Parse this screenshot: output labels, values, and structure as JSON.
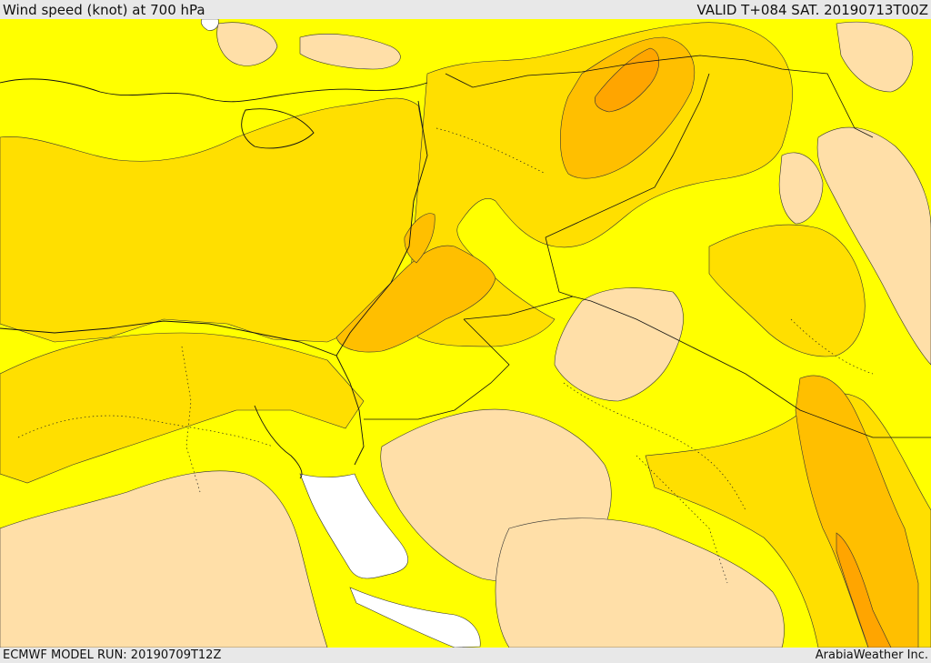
{
  "header": {
    "title": "Wind speed (knot) at 700 hPa",
    "valid": "VALID T+084 SAT. 20190713T00Z"
  },
  "footer": {
    "model_run": "ECMWF MODEL RUN: 20190709T12Z",
    "credit": "ArabiaWeather Inc."
  },
  "palette": {
    "calm": "#ffdfa8",
    "light": "#ffff00",
    "moderate": "#ffdf00",
    "fresh": "#ffbf00",
    "strong": "#ffa500",
    "sea_gap": "#ffffff",
    "boundary": "#111111"
  }
}
